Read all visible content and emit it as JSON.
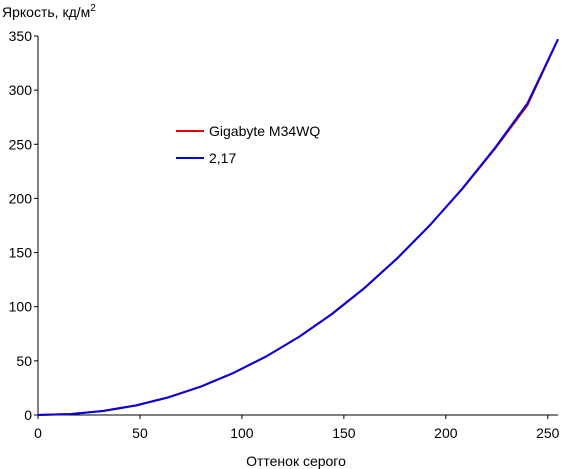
{
  "chart_data": {
    "type": "line",
    "title": "",
    "ylabel": "Яркость, кд/м",
    "ylabel_sup": "2",
    "xlabel": "Оттенок серого",
    "xlim": [
      0,
      255
    ],
    "ylim": [
      0,
      350
    ],
    "xticks": [
      0,
      50,
      100,
      150,
      200,
      250
    ],
    "yticks": [
      0,
      50,
      100,
      150,
      200,
      250,
      300,
      350
    ],
    "grid": false,
    "legend_position": "center-left",
    "series": [
      {
        "name": "Gigabyte M34WQ",
        "color": "#e00000",
        "x": [
          0,
          16,
          32,
          48,
          64,
          80,
          96,
          112,
          128,
          144,
          160,
          176,
          192,
          208,
          224,
          240,
          255
        ],
        "y": [
          0.1,
          0.9,
          3.8,
          8.9,
          16.4,
          26.3,
          38.9,
          54.1,
          72.2,
          93.2,
          117.3,
          144.5,
          174.9,
          208.6,
          245.6,
          286.0,
          347.0
        ]
      },
      {
        "name": "2,17",
        "color": "#0000e0",
        "x": [
          0,
          16,
          32,
          48,
          64,
          80,
          96,
          112,
          128,
          144,
          160,
          176,
          192,
          208,
          224,
          240,
          255
        ],
        "y": [
          0.0,
          0.8,
          3.7,
          8.8,
          16.3,
          26.4,
          39.0,
          54.2,
          72.1,
          93.0,
          117.0,
          144.3,
          174.9,
          208.9,
          246.5,
          287.7,
          347.0
        ]
      }
    ]
  }
}
